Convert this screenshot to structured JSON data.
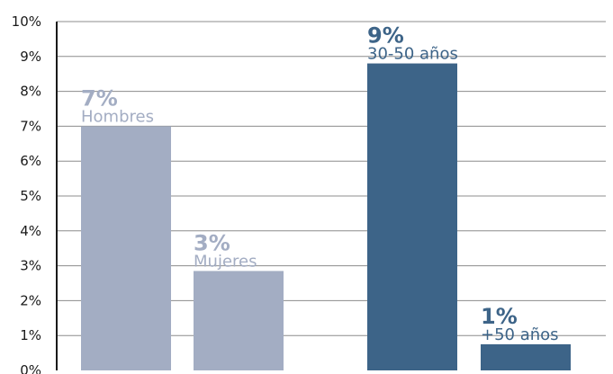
{
  "colors": {
    "light": "#a3adc3",
    "dark": "#3d6488",
    "grid": "#8c8c8c",
    "axis": "#1a1a1a"
  },
  "chart_data": {
    "type": "bar",
    "ylim": [
      0,
      10
    ],
    "yticks": [
      "0%",
      "1%",
      "2%",
      "3%",
      "4%",
      "5%",
      "6%",
      "7%",
      "8%",
      "9%",
      "10%"
    ],
    "grid": true,
    "bars": [
      {
        "label": "Hombres",
        "value": 7.0,
        "value_label": "7%",
        "color_key": "light"
      },
      {
        "label": "Mujeres",
        "value": 2.85,
        "value_label": "3%",
        "color_key": "light"
      },
      {
        "label": "30-50 años",
        "value": 8.8,
        "value_label": "9%",
        "color_key": "dark"
      },
      {
        "label": "+50 años",
        "value": 0.75,
        "value_label": "1%",
        "color_key": "dark"
      }
    ]
  }
}
